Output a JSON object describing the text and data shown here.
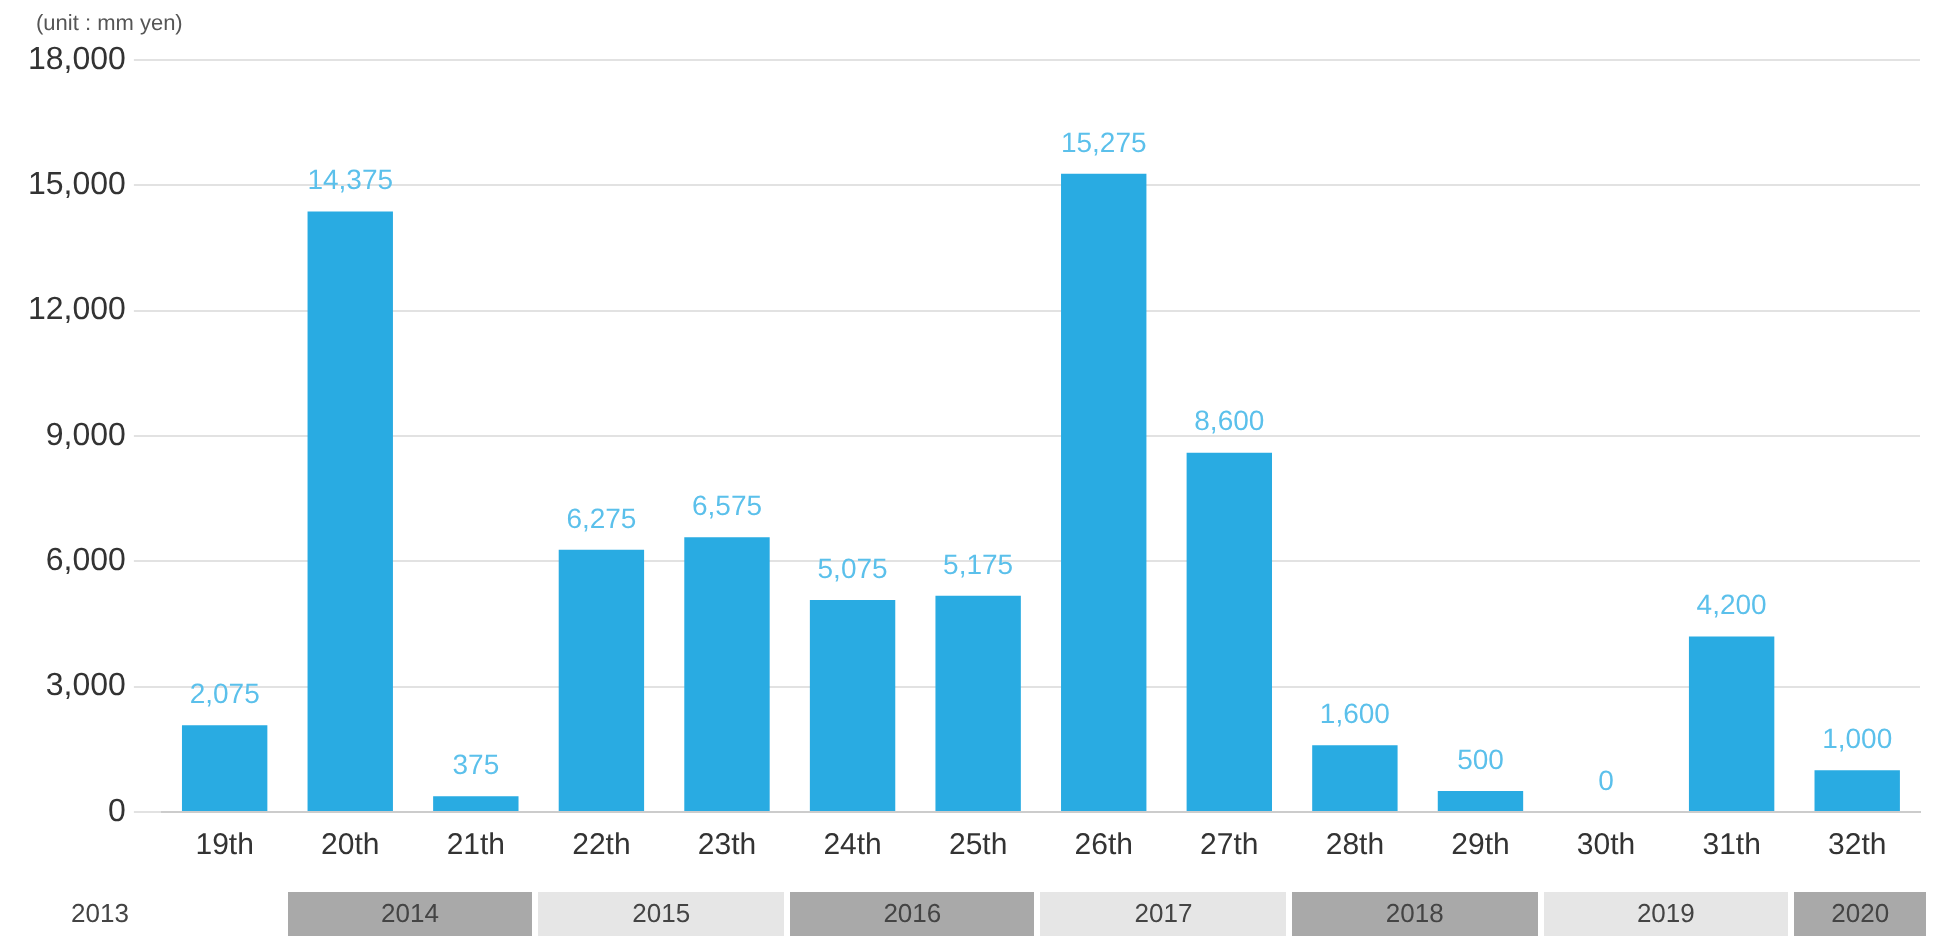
{
  "chart_data": {
    "type": "bar",
    "ylabel": "(unit : mm yen)",
    "categories": [
      "19th",
      "20th",
      "21th",
      "22th",
      "23th",
      "24th",
      "25th",
      "26th",
      "27th",
      "28th",
      "29th",
      "30th",
      "31th",
      "32th"
    ],
    "values": [
      2075,
      14375,
      375,
      6275,
      6575,
      5075,
      5175,
      15275,
      8600,
      1600,
      500,
      0,
      4200,
      1000
    ],
    "value_labels": [
      "2,075",
      "14,375",
      "375",
      "6,275",
      "6,575",
      "5,075",
      "5,175",
      "15,275",
      "8,600",
      "1,600",
      "500",
      "0",
      "4,200",
      "1,000"
    ],
    "color": "#29abe2",
    "ylim": [
      0,
      18000
    ],
    "yticks": [
      {
        "value": 0,
        "label": "0"
      },
      {
        "value": 3000,
        "label": "3,000"
      },
      {
        "value": 6000,
        "label": "6,000"
      },
      {
        "value": 9000,
        "label": "9,000"
      },
      {
        "value": 12000,
        "label": "12,000"
      },
      {
        "value": 15000,
        "label": "15,000"
      },
      {
        "value": 18000,
        "label": "18,000"
      }
    ],
    "grid": "y",
    "legend": false,
    "annotations": [
      "2013",
      "2014",
      "2015",
      "2016",
      "2017",
      "2018",
      "2019",
      "2020"
    ]
  }
}
